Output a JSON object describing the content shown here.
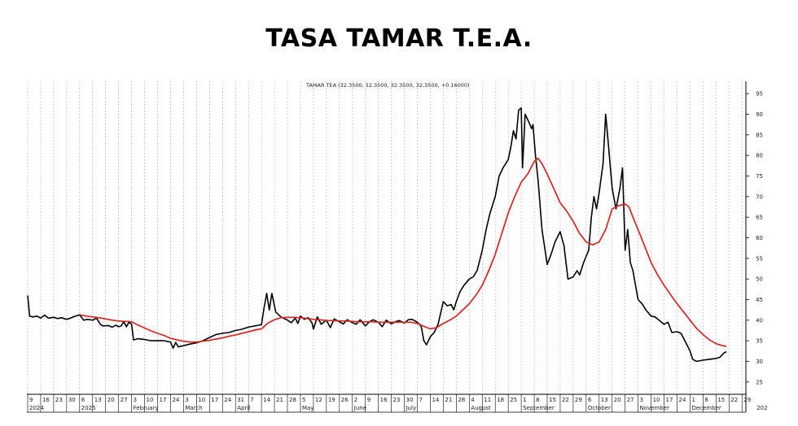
{
  "chart_data": {
    "type": "line",
    "title": "TASA TAMAR T.E.A.",
    "legend_text": "TAMAR TEA (32.3500, 32.3500, 32.3500, 32.3500, +0.16000)",
    "ylim": [
      22,
      98
    ],
    "y_ticks": [
      25,
      30,
      35,
      40,
      45,
      50,
      55,
      60,
      65,
      70,
      75,
      80,
      85,
      90,
      95
    ],
    "x_ticks": [
      "9",
      "16",
      "23",
      "30",
      "6",
      "13",
      "20",
      "27",
      "3",
      "10",
      "17",
      "24",
      "3",
      "10",
      "17",
      "24",
      "31",
      "7",
      "14",
      "21",
      "28",
      "5",
      "12",
      "19",
      "26",
      "2",
      "9",
      "16",
      "23",
      "30",
      "7",
      "14",
      "21",
      "28",
      "4",
      "11",
      "18",
      "25",
      "1",
      "8",
      "15",
      "22",
      "29",
      "6",
      "13",
      "20",
      "27",
      "3",
      "10",
      "17",
      "24",
      "1",
      "8",
      "15",
      "22",
      "29",
      "5"
    ],
    "x_month_labels": [
      {
        "at": 0,
        "label": "2024"
      },
      {
        "at": 4,
        "label": "2025"
      },
      {
        "at": 8,
        "label": "February"
      },
      {
        "at": 12,
        "label": "March"
      },
      {
        "at": 16,
        "label": "April"
      },
      {
        "at": 21,
        "label": "May"
      },
      {
        "at": 25,
        "label": "June"
      },
      {
        "at": 29,
        "label": "July"
      },
      {
        "at": 34,
        "label": "August"
      },
      {
        "at": 38,
        "label": "September"
      },
      {
        "at": 43,
        "label": "October"
      },
      {
        "at": 47,
        "label": "November"
      },
      {
        "at": 51,
        "label": "December"
      },
      {
        "at": 56,
        "label": "202"
      }
    ],
    "series": [
      {
        "color": "#000000",
        "points": [
          [
            0,
            46
          ],
          [
            0.15,
            41
          ],
          [
            0.4,
            40.8
          ],
          [
            0.7,
            41
          ],
          [
            1,
            40.5
          ],
          [
            1.3,
            41.2
          ],
          [
            1.6,
            40.5
          ],
          [
            2,
            40.7
          ],
          [
            2.3,
            40.4
          ],
          [
            2.6,
            40.6
          ],
          [
            3,
            40.2
          ],
          [
            3.3,
            40.5
          ],
          [
            3.6,
            40.9
          ],
          [
            4,
            41.3
          ],
          [
            4.3,
            40
          ],
          [
            4.6,
            40.2
          ],
          [
            5,
            40
          ],
          [
            5.3,
            40.5
          ],
          [
            5.6,
            39
          ],
          [
            5.8,
            38.6
          ],
          [
            6.2,
            38.7
          ],
          [
            6.5,
            38.3
          ],
          [
            6.8,
            38.8
          ],
          [
            7,
            38.4
          ],
          [
            7.2,
            38.6
          ],
          [
            7.4,
            39.6
          ],
          [
            7.6,
            38.4
          ],
          [
            7.8,
            39.5
          ],
          [
            8,
            39
          ],
          [
            8.15,
            35.2
          ],
          [
            8.5,
            35.5
          ],
          [
            9,
            35.3
          ],
          [
            9.5,
            35
          ],
          [
            10,
            35
          ],
          [
            10.5,
            35
          ],
          [
            11,
            34.7
          ],
          [
            11.2,
            33.2
          ],
          [
            11.4,
            34.6
          ],
          [
            11.6,
            33.5
          ],
          [
            12,
            33.8
          ],
          [
            12.5,
            34.2
          ],
          [
            13,
            34.5
          ],
          [
            13.5,
            35
          ],
          [
            14,
            35.8
          ],
          [
            14.5,
            36.5
          ],
          [
            15,
            36.8
          ],
          [
            15.5,
            37
          ],
          [
            16,
            37.5
          ],
          [
            16.5,
            37.8
          ],
          [
            17,
            38.3
          ],
          [
            17.5,
            38.6
          ],
          [
            18,
            38.9
          ],
          [
            18.2,
            43
          ],
          [
            18.4,
            46.5
          ],
          [
            18.6,
            42.5
          ],
          [
            18.8,
            46.5
          ],
          [
            19.1,
            42
          ],
          [
            19.5,
            40.8
          ],
          [
            20,
            40
          ],
          [
            20.3,
            39.4
          ],
          [
            20.6,
            40.5
          ],
          [
            20.8,
            39.2
          ],
          [
            21,
            41
          ],
          [
            21.3,
            40.2
          ],
          [
            21.6,
            40.6
          ],
          [
            21.9,
            39.3
          ],
          [
            22,
            37.8
          ],
          [
            22.3,
            40.8
          ],
          [
            22.6,
            39
          ],
          [
            23,
            40
          ],
          [
            23.3,
            38.2
          ],
          [
            23.6,
            40.3
          ],
          [
            24,
            39.6
          ],
          [
            24.3,
            39.1
          ],
          [
            24.6,
            40.1
          ],
          [
            25,
            39.4
          ],
          [
            25.3,
            39
          ],
          [
            25.6,
            40.1
          ],
          [
            26,
            38.6
          ],
          [
            26.3,
            39.6
          ],
          [
            26.6,
            40.1
          ],
          [
            27,
            39.5
          ],
          [
            27.3,
            38.4
          ],
          [
            27.6,
            40
          ],
          [
            28,
            39.1
          ],
          [
            28.3,
            39.6
          ],
          [
            28.6,
            39.9
          ],
          [
            29,
            39.3
          ],
          [
            29.3,
            40.1
          ],
          [
            29.6,
            40.2
          ],
          [
            30,
            39.5
          ],
          [
            30.3,
            38.5
          ],
          [
            30.5,
            35
          ],
          [
            30.7,
            34
          ],
          [
            31,
            36
          ],
          [
            31.3,
            37
          ],
          [
            31.6,
            39
          ],
          [
            32,
            44.5
          ],
          [
            32.3,
            43.5
          ],
          [
            32.6,
            43.8
          ],
          [
            32.8,
            42.5
          ],
          [
            33,
            44.5
          ],
          [
            33.3,
            47
          ],
          [
            33.6,
            48.5
          ],
          [
            34,
            50
          ],
          [
            34.3,
            50.5
          ],
          [
            34.6,
            52
          ],
          [
            35,
            57
          ],
          [
            35.3,
            62
          ],
          [
            35.6,
            66
          ],
          [
            36,
            70
          ],
          [
            36.3,
            75
          ],
          [
            36.6,
            77
          ],
          [
            37,
            79
          ],
          [
            37.2,
            82
          ],
          [
            37.4,
            86
          ],
          [
            37.6,
            84
          ],
          [
            37.8,
            91
          ],
          [
            38,
            91.5
          ],
          [
            38.1,
            77
          ],
          [
            38.3,
            90
          ],
          [
            38.6,
            88
          ],
          [
            38.8,
            86.5
          ],
          [
            38.9,
            87.5
          ],
          [
            39.1,
            80
          ],
          [
            39.3,
            74
          ],
          [
            39.6,
            62
          ],
          [
            40,
            53.5
          ],
          [
            40.3,
            56
          ],
          [
            40.6,
            59
          ],
          [
            41,
            61.5
          ],
          [
            41.3,
            58
          ],
          [
            41.6,
            50
          ],
          [
            42,
            50.5
          ],
          [
            42.3,
            52
          ],
          [
            42.5,
            51
          ],
          [
            42.8,
            54
          ],
          [
            43.2,
            57
          ],
          [
            43.4,
            65
          ],
          [
            43.6,
            70
          ],
          [
            43.8,
            67
          ],
          [
            44,
            71
          ],
          [
            44.3,
            78
          ],
          [
            44.5,
            90
          ],
          [
            44.7,
            83
          ],
          [
            45,
            72
          ],
          [
            45.3,
            67
          ],
          [
            45.6,
            72
          ],
          [
            45.8,
            77
          ],
          [
            46,
            57
          ],
          [
            46.2,
            62
          ],
          [
            46.4,
            54
          ],
          [
            46.6,
            52
          ],
          [
            47,
            45
          ],
          [
            47.3,
            44
          ],
          [
            47.6,
            42.5
          ],
          [
            48,
            41
          ],
          [
            48.3,
            40.8
          ],
          [
            48.6,
            40
          ],
          [
            49,
            39
          ],
          [
            49.3,
            39.5
          ],
          [
            49.6,
            37
          ],
          [
            50,
            37.2
          ],
          [
            50.3,
            36.8
          ],
          [
            50.6,
            35
          ],
          [
            51,
            32.5
          ],
          [
            51.2,
            30.5
          ],
          [
            51.5,
            30
          ],
          [
            52,
            30.3
          ],
          [
            52.5,
            30.5
          ],
          [
            53,
            30.7
          ],
          [
            53.3,
            31
          ],
          [
            53.6,
            32
          ],
          [
            53.8,
            32.35
          ]
        ]
      },
      {
        "color": "#e02020",
        "points": [
          [
            4,
            41.3
          ],
          [
            4.5,
            41
          ],
          [
            5,
            40.8
          ],
          [
            5.5,
            40.6
          ],
          [
            6,
            40.3
          ],
          [
            6.5,
            40
          ],
          [
            7,
            39.8
          ],
          [
            7.5,
            39.7
          ],
          [
            8,
            39.6
          ],
          [
            8.5,
            38.8
          ],
          [
            9,
            38.1
          ],
          [
            9.5,
            37.4
          ],
          [
            10,
            36.8
          ],
          [
            10.5,
            36.3
          ],
          [
            11,
            35.6
          ],
          [
            11.5,
            35.2
          ],
          [
            12,
            34.9
          ],
          [
            12.5,
            34.7
          ],
          [
            13,
            34.7
          ],
          [
            13.5,
            34.9
          ],
          [
            14,
            35.1
          ],
          [
            14.5,
            35.4
          ],
          [
            15,
            35.7
          ],
          [
            15.5,
            36.1
          ],
          [
            16,
            36.4
          ],
          [
            16.5,
            36.8
          ],
          [
            17,
            37.2
          ],
          [
            17.5,
            37.6
          ],
          [
            18,
            37.9
          ],
          [
            18.5,
            39.3
          ],
          [
            19,
            40.1
          ],
          [
            19.5,
            40.6
          ],
          [
            20,
            40.7
          ],
          [
            20.5,
            40.7
          ],
          [
            21,
            40.6
          ],
          [
            21.5,
            40.4
          ],
          [
            22,
            40.2
          ],
          [
            22.5,
            40.1
          ],
          [
            23,
            39.9
          ],
          [
            23.5,
            39.9
          ],
          [
            24,
            39.8
          ],
          [
            24.5,
            39.8
          ],
          [
            25,
            39.7
          ],
          [
            25.5,
            39.6
          ],
          [
            26,
            39.6
          ],
          [
            26.5,
            39.6
          ],
          [
            27,
            39.5
          ],
          [
            27.5,
            39.5
          ],
          [
            28,
            39.5
          ],
          [
            28.5,
            39.5
          ],
          [
            29,
            39.5
          ],
          [
            29.5,
            39.5
          ],
          [
            30,
            39.2
          ],
          [
            30.5,
            38.5
          ],
          [
            31,
            37.9
          ],
          [
            31.5,
            38.2
          ],
          [
            32,
            39.2
          ],
          [
            32.5,
            40
          ],
          [
            33,
            41
          ],
          [
            33.5,
            42.5
          ],
          [
            34,
            44
          ],
          [
            34.5,
            46
          ],
          [
            35,
            48.5
          ],
          [
            35.5,
            52
          ],
          [
            36,
            56
          ],
          [
            36.5,
            61
          ],
          [
            37,
            66
          ],
          [
            37.5,
            70
          ],
          [
            38,
            73.5
          ],
          [
            38.5,
            75.5
          ],
          [
            39,
            78.5
          ],
          [
            39.3,
            79.3
          ],
          [
            39.6,
            78
          ],
          [
            40,
            75.5
          ],
          [
            40.5,
            72
          ],
          [
            41,
            68.5
          ],
          [
            41.5,
            66.5
          ],
          [
            42,
            64
          ],
          [
            42.5,
            61
          ],
          [
            43,
            59
          ],
          [
            43.5,
            58.3
          ],
          [
            44,
            59
          ],
          [
            44.5,
            62
          ],
          [
            45,
            67
          ],
          [
            45.5,
            67.8
          ],
          [
            46,
            68.2
          ],
          [
            46.3,
            67.5
          ],
          [
            46.6,
            65
          ],
          [
            47,
            62
          ],
          [
            47.5,
            58
          ],
          [
            48,
            54
          ],
          [
            48.5,
            51
          ],
          [
            49,
            48.5
          ],
          [
            49.5,
            46.2
          ],
          [
            50,
            44
          ],
          [
            50.5,
            42
          ],
          [
            51,
            40
          ],
          [
            51.5,
            38
          ],
          [
            52,
            36.5
          ],
          [
            52.5,
            35.2
          ],
          [
            53,
            34.3
          ],
          [
            53.5,
            33.8
          ],
          [
            53.8,
            33.6
          ]
        ]
      }
    ]
  }
}
